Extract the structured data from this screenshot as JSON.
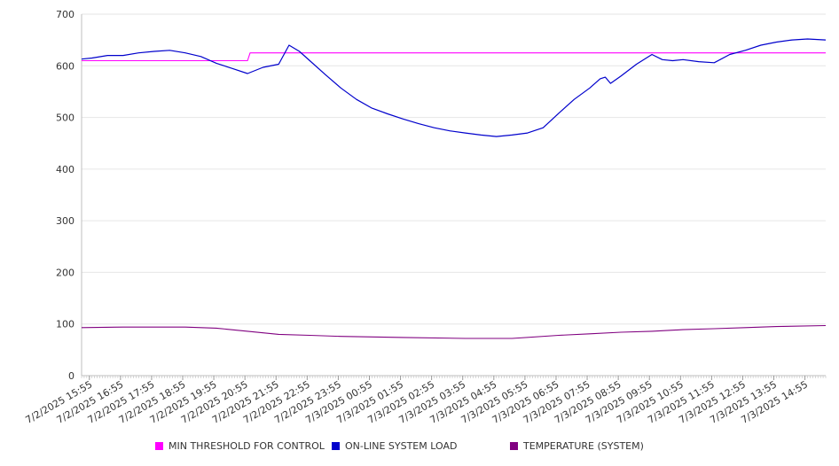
{
  "chart_data": {
    "type": "line",
    "title": "",
    "xlabel": "",
    "ylabel": "",
    "ylim": [
      0,
      700
    ],
    "yticks": [
      "0",
      "100",
      "200",
      "300",
      "400",
      "500",
      "600",
      "700"
    ],
    "x_tick_labels": [
      "7/2/2025 15:55",
      "7/2/2025 16:55",
      "7/2/2025 17:55",
      "7/2/2025 18:55",
      "7/2/2025 19:55",
      "7/2/2025 20:55",
      "7/2/2025 21:55",
      "7/2/2025 22:55",
      "7/2/2025 23:55",
      "7/3/2025 00:55",
      "7/3/2025 01:55",
      "7/3/2025 02:55",
      "7/3/2025 03:55",
      "7/3/2025 04:55",
      "7/3/2025 05:55",
      "7/3/2025 06:55",
      "7/3/2025 07:55",
      "7/3/2025 08:55",
      "7/3/2025 09:55",
      "7/3/2025 10:55",
      "7/3/2025 11:55",
      "7/3/2025 12:55",
      "7/3/2025 13:55",
      "7/3/2025 14:55"
    ],
    "grid": true,
    "legend_position": "bottom",
    "series": [
      {
        "name": "MIN THRESHOLD FOR CONTROL",
        "color": "#ff00ff",
        "x": [
          "7/2/2025 15:40",
          "7/2/2025 21:00",
          "7/2/2025 21:05",
          "7/3/2025 15:35"
        ],
        "y": [
          610,
          610,
          625,
          625
        ]
      },
      {
        "name": "ON-LINE SYSTEM LOAD",
        "color": "#0000cc",
        "x": [
          "7/2/2025 15:40",
          "7/2/2025 16:00",
          "7/2/2025 16:30",
          "7/2/2025 17:00",
          "7/2/2025 17:30",
          "7/2/2025 18:00",
          "7/2/2025 18:30",
          "7/2/2025 19:00",
          "7/2/2025 19:30",
          "7/2/2025 20:00",
          "7/2/2025 20:30",
          "7/2/2025 21:00",
          "7/2/2025 21:30",
          "7/2/2025 22:00",
          "7/2/2025 22:20",
          "7/2/2025 22:40",
          "7/2/2025 23:00",
          "7/2/2025 23:30",
          "7/3/2025 00:00",
          "7/3/2025 00:30",
          "7/3/2025 01:00",
          "7/3/2025 01:30",
          "7/3/2025 02:00",
          "7/3/2025 02:30",
          "7/3/2025 03:00",
          "7/3/2025 03:30",
          "7/3/2025 04:00",
          "7/3/2025 04:30",
          "7/3/2025 05:00",
          "7/3/2025 05:30",
          "7/3/2025 06:00",
          "7/3/2025 06:30",
          "7/3/2025 07:00",
          "7/3/2025 07:30",
          "7/3/2025 08:00",
          "7/3/2025 08:20",
          "7/3/2025 08:30",
          "7/3/2025 08:40",
          "7/3/2025 09:00",
          "7/3/2025 09:30",
          "7/3/2025 10:00",
          "7/3/2025 10:20",
          "7/3/2025 10:40",
          "7/3/2025 11:00",
          "7/3/2025 11:30",
          "7/3/2025 12:00",
          "7/3/2025 12:30",
          "7/3/2025 13:00",
          "7/3/2025 13:30",
          "7/3/2025 14:00",
          "7/3/2025 14:30",
          "7/3/2025 15:00",
          "7/3/2025 15:35"
        ],
        "y": [
          613,
          615,
          620,
          620,
          625,
          628,
          630,
          625,
          618,
          605,
          595,
          585,
          597,
          603,
          640,
          628,
          610,
          583,
          557,
          535,
          518,
          507,
          497,
          488,
          480,
          474,
          470,
          466,
          463,
          466,
          470,
          480,
          508,
          535,
          557,
          575,
          578,
          566,
          580,
          603,
          622,
          612,
          610,
          612,
          608,
          606,
          622,
          630,
          640,
          646,
          650,
          652,
          650
        ]
      },
      {
        "name": "TEMPERATURE (SYSTEM)",
        "color": "#800080",
        "x": [
          "7/2/2025 15:40",
          "7/2/2025 17:00",
          "7/2/2025 19:00",
          "7/2/2025 20:00",
          "7/2/2025 21:00",
          "7/2/2025 22:00",
          "7/2/2025 23:00",
          "7/3/2025 00:00",
          "7/3/2025 02:00",
          "7/3/2025 04:00",
          "7/3/2025 05:30",
          "7/3/2025 07:00",
          "7/3/2025 08:00",
          "7/3/2025 09:00",
          "7/3/2025 10:00",
          "7/3/2025 11:00",
          "7/3/2025 12:00",
          "7/3/2025 13:00",
          "7/3/2025 14:00",
          "7/3/2025 15:35"
        ],
        "y": [
          93,
          94,
          94,
          92,
          86,
          80,
          78,
          76,
          74,
          72,
          72,
          78,
          81,
          84,
          86,
          89,
          91,
          93,
          95,
          97
        ]
      }
    ]
  }
}
